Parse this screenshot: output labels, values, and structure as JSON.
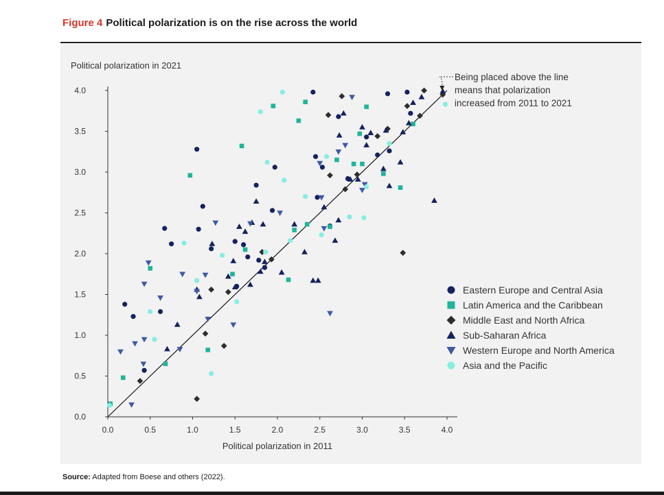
{
  "header": {
    "figure_label": "Figure 4",
    "title": "Political polarization is on the rise across the world"
  },
  "footer": {
    "source_label": "Source:",
    "source_text": "Adapted from Boese and others (2022)."
  },
  "chart_data": {
    "type": "scatter",
    "xlabel": "Political polarization in 2011",
    "ylabel": "Political polarization in 2021",
    "xlim": [
      0,
      4
    ],
    "ylim": [
      0,
      4
    ],
    "xticks": [
      "0.0",
      "0.5",
      "1.0",
      "1.5",
      "2.0",
      "2.5",
      "3.0",
      "3.5",
      "4.0"
    ],
    "yticks": [
      "0.0",
      "0.5",
      "1.0",
      "1.5",
      "2.0",
      "2.5",
      "3.0",
      "3.5",
      "4.0"
    ],
    "grid": false,
    "legend_position": "right",
    "reference_line": {
      "from": [
        0,
        0
      ],
      "to": [
        4,
        4
      ]
    },
    "annotation": {
      "lines": [
        "Being placed above the line",
        "means that polarization",
        "increased from 2011 to 2021"
      ],
      "points_to": [
        3.95,
        3.95
      ]
    },
    "series": [
      {
        "name": "Eastern Europe and Central Asia",
        "marker": "circle",
        "color": "#14225f",
        "points": [
          [
            0.2,
            1.38
          ],
          [
            0.3,
            1.23
          ],
          [
            0.43,
            0.57
          ],
          [
            0.62,
            1.29
          ],
          [
            0.67,
            2.31
          ],
          [
            0.75,
            2.12
          ],
          [
            1.05,
            3.28
          ],
          [
            1.07,
            2.3
          ],
          [
            1.12,
            2.58
          ],
          [
            1.22,
            2.06
          ],
          [
            1.5,
            2.15
          ],
          [
            1.52,
            1.6
          ],
          [
            1.6,
            2.11
          ],
          [
            1.65,
            1.96
          ],
          [
            1.75,
            2.84
          ],
          [
            1.78,
            1.92
          ],
          [
            1.85,
            1.83
          ],
          [
            1.94,
            2.53
          ],
          [
            1.97,
            3.06
          ],
          [
            2.42,
            3.98
          ],
          [
            2.45,
            3.19
          ],
          [
            2.47,
            2.69
          ],
          [
            2.53,
            3.06
          ],
          [
            2.62,
            2.34
          ],
          [
            2.72,
            3.68
          ],
          [
            2.83,
            2.92
          ],
          [
            3.05,
            3.43
          ],
          [
            3.18,
            3.21
          ],
          [
            3.3,
            3.96
          ],
          [
            3.32,
            3.26
          ],
          [
            3.53,
            3.98
          ],
          [
            3.57,
            3.72
          ]
        ]
      },
      {
        "name": "Latin America and the Caribbean",
        "marker": "square",
        "color": "#20b49a",
        "points": [
          [
            0.03,
            0.16
          ],
          [
            0.18,
            0.48
          ],
          [
            0.5,
            1.82
          ],
          [
            0.68,
            0.65
          ],
          [
            0.97,
            2.96
          ],
          [
            1.18,
            0.82
          ],
          [
            1.47,
            1.75
          ],
          [
            1.58,
            3.32
          ],
          [
            1.62,
            2.05
          ],
          [
            1.95,
            3.81
          ],
          [
            2.13,
            1.68
          ],
          [
            2.2,
            2.29
          ],
          [
            2.25,
            3.63
          ],
          [
            2.33,
            3.86
          ],
          [
            2.35,
            2.36
          ],
          [
            2.62,
            2.33
          ],
          [
            2.7,
            3.15
          ],
          [
            2.9,
            3.1
          ],
          [
            2.97,
            3.47
          ],
          [
            3.0,
            3.1
          ],
          [
            3.05,
            3.8
          ],
          [
            3.25,
            2.98
          ],
          [
            3.45,
            2.81
          ],
          [
            3.6,
            3.59
          ]
        ]
      },
      {
        "name": "Middle East and North Africa",
        "marker": "diamond",
        "color": "#2e2e2e",
        "points": [
          [
            0.38,
            0.44
          ],
          [
            1.05,
            0.22
          ],
          [
            1.15,
            1.02
          ],
          [
            1.22,
            1.56
          ],
          [
            1.37,
            0.87
          ],
          [
            1.42,
            1.53
          ],
          [
            1.82,
            2.02
          ],
          [
            1.93,
            1.93
          ],
          [
            2.6,
            3.7
          ],
          [
            2.62,
            2.96
          ],
          [
            2.76,
            3.93
          ],
          [
            2.8,
            2.79
          ],
          [
            2.94,
            2.97
          ],
          [
            3.18,
            3.44
          ],
          [
            3.3,
            3.53
          ],
          [
            3.48,
            2.01
          ],
          [
            3.53,
            3.81
          ],
          [
            3.68,
            3.69
          ],
          [
            3.73,
            4.0
          ],
          [
            3.95,
            3.95
          ]
        ]
      },
      {
        "name": "Sub-Saharan Africa",
        "marker": "triangle-up",
        "color": "#14225f",
        "points": [
          [
            0.7,
            0.83
          ],
          [
            0.82,
            1.13
          ],
          [
            1.05,
            1.56
          ],
          [
            1.08,
            1.47
          ],
          [
            1.23,
            2.12
          ],
          [
            1.42,
            1.72
          ],
          [
            1.48,
            1.91
          ],
          [
            1.5,
            1.59
          ],
          [
            1.55,
            2.33
          ],
          [
            1.62,
            2.27
          ],
          [
            1.68,
            1.62
          ],
          [
            1.7,
            2.38
          ],
          [
            1.75,
            2.64
          ],
          [
            1.8,
            1.78
          ],
          [
            1.83,
            2.36
          ],
          [
            1.85,
            1.9
          ],
          [
            2.05,
            1.77
          ],
          [
            2.2,
            2.36
          ],
          [
            2.32,
            2.02
          ],
          [
            2.42,
            1.67
          ],
          [
            2.48,
            1.67
          ],
          [
            2.55,
            2.57
          ],
          [
            2.68,
            2.16
          ],
          [
            2.72,
            2.41
          ],
          [
            2.73,
            3.45
          ],
          [
            2.78,
            3.72
          ],
          [
            2.86,
            2.91
          ],
          [
            2.95,
            2.91
          ],
          [
            3.0,
            3.55
          ],
          [
            3.05,
            3.33
          ],
          [
            3.1,
            3.48
          ],
          [
            3.25,
            3.04
          ],
          [
            3.28,
            3.51
          ],
          [
            3.32,
            2.83
          ],
          [
            3.45,
            3.12
          ],
          [
            3.48,
            3.49
          ],
          [
            3.55,
            3.6
          ],
          [
            3.6,
            3.85
          ],
          [
            3.7,
            3.92
          ],
          [
            3.85,
            2.65
          ],
          [
            3.95,
            3.99
          ]
        ]
      },
      {
        "name": "Western Europe and North America",
        "marker": "triangle-down",
        "color": "#3d5aa6",
        "points": [
          [
            0.15,
            0.8
          ],
          [
            0.28,
            0.15
          ],
          [
            0.32,
            0.9
          ],
          [
            0.42,
            0.65
          ],
          [
            0.43,
            0.95
          ],
          [
            0.43,
            1.63
          ],
          [
            0.48,
            1.89
          ],
          [
            0.62,
            1.46
          ],
          [
            0.85,
            0.83
          ],
          [
            0.88,
            1.75
          ],
          [
            1.05,
            1.54
          ],
          [
            1.15,
            1.74
          ],
          [
            1.18,
            1.2
          ],
          [
            1.27,
            2.38
          ],
          [
            1.48,
            1.13
          ],
          [
            1.68,
            2.37
          ],
          [
            2.03,
            2.5
          ],
          [
            2.5,
            3.11
          ],
          [
            2.52,
            2.69
          ],
          [
            2.55,
            2.31
          ],
          [
            2.62,
            1.27
          ],
          [
            2.72,
            3.25
          ],
          [
            2.8,
            3.33
          ],
          [
            2.88,
            3.92
          ],
          [
            3.0,
            2.78
          ],
          [
            3.03,
            2.85
          ]
        ]
      },
      {
        "name": "Asia and the Pacific",
        "marker": "circle",
        "color": "#86eee2",
        "points": [
          [
            0.02,
            0.14
          ],
          [
            0.5,
            1.29
          ],
          [
            0.55,
            0.95
          ],
          [
            0.9,
            2.13
          ],
          [
            1.05,
            1.67
          ],
          [
            1.22,
            0.53
          ],
          [
            1.35,
            1.98
          ],
          [
            1.52,
            1.41
          ],
          [
            1.8,
            3.74
          ],
          [
            1.86,
            2.02
          ],
          [
            1.88,
            3.12
          ],
          [
            2.06,
            3.98
          ],
          [
            2.08,
            2.9
          ],
          [
            2.15,
            2.16
          ],
          [
            2.33,
            2.7
          ],
          [
            2.52,
            2.23
          ],
          [
            2.58,
            3.19
          ],
          [
            2.85,
            2.45
          ],
          [
            3.02,
            2.44
          ],
          [
            3.05,
            2.82
          ],
          [
            3.32,
            3.35
          ],
          [
            3.98,
            3.83
          ]
        ]
      }
    ]
  }
}
